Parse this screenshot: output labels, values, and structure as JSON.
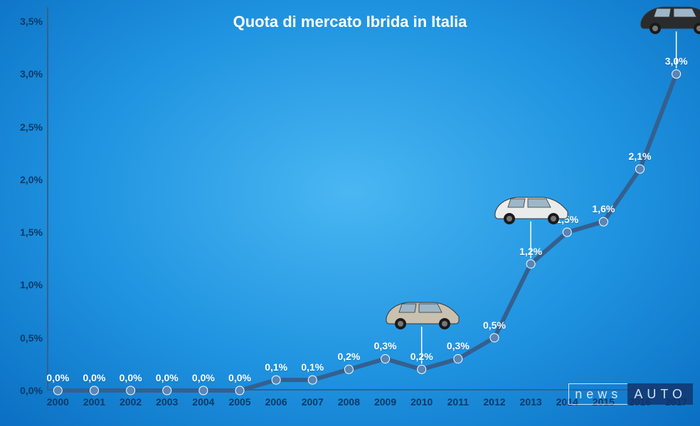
{
  "chart": {
    "type": "line",
    "title": "Quota di mercato Ibrida in Italia",
    "title_fontsize": 22,
    "title_color": "#ffffff",
    "background_gradient": [
      "#4ab7f2",
      "#1f93e0",
      "#0b6fc2"
    ],
    "line_color": "#34608f",
    "line_width": 6,
    "marker_color": "#5a85b5",
    "marker_border": "#ffffff",
    "marker_radius": 6,
    "axis_label_color": "#0a3a66",
    "axis_label_fontsize": 14,
    "data_label_color": "#ffffff",
    "data_label_fontsize": 14,
    "x": {
      "categories": [
        "2000",
        "2001",
        "2002",
        "2003",
        "2004",
        "2005",
        "2006",
        "2007",
        "2008",
        "2009",
        "2010",
        "2011",
        "2012",
        "2013",
        "2014",
        "2015",
        "2016",
        "2017"
      ]
    },
    "y": {
      "min": 0.0,
      "max": 3.5,
      "tick_step": 0.5,
      "ticks": [
        "0,0%",
        "0,5%",
        "1,0%",
        "1,5%",
        "2,0%",
        "2,5%",
        "3,0%",
        "3,5%"
      ]
    },
    "values": [
      0.0,
      0.0,
      0.0,
      0.0,
      0.0,
      0.0,
      0.1,
      0.1,
      0.2,
      0.3,
      0.2,
      0.3,
      0.5,
      1.2,
      1.5,
      1.6,
      2.1,
      3.0
    ],
    "labels": [
      "0,0%",
      "0,0%",
      "0,0%",
      "0,0%",
      "0,0%",
      "0,0%",
      "0,1%",
      "0,1%",
      "0,2%",
      "0,3%",
      "0,2%",
      "0,3%",
      "0,5%",
      "1,2%",
      "1,5%",
      "1,6%",
      "2,1%",
      "3,0%"
    ],
    "cars": [
      {
        "at_x": "2010",
        "body_color": "#c9c1af",
        "name": "car-2010"
      },
      {
        "at_x": "2013",
        "body_color": "#eaeceb",
        "name": "car-2013"
      },
      {
        "at_x": "2017",
        "body_color": "#2b2b2b",
        "name": "car-2017"
      }
    ]
  },
  "watermark": {
    "part1": "news",
    "part2": "AUTO"
  }
}
